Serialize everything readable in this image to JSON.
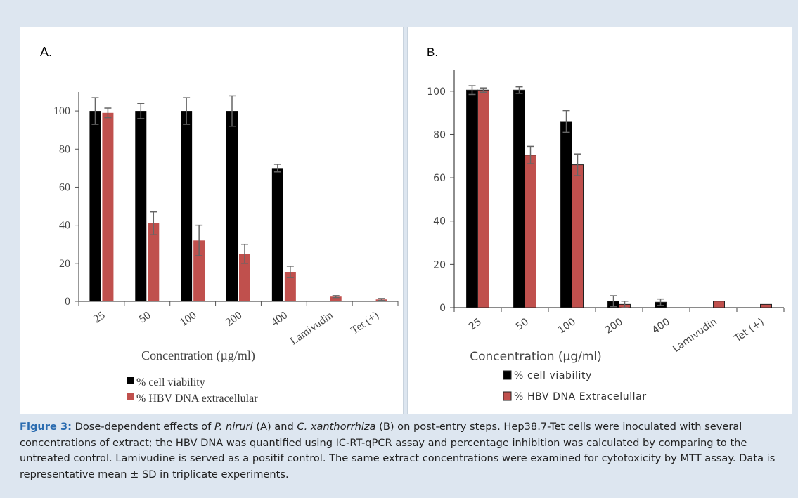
{
  "colors": {
    "viability": "#000000",
    "hbv": "#c0504d",
    "caption_label": "#2b6cb0"
  },
  "caption": {
    "label": "Figure 3:",
    "seg1": " Dose-dependent effects of ",
    "species1": "P. niruri",
    "seg2": " (A) and ",
    "species2": "C. xanthorrhiza",
    "seg3": " (B) on post-entry steps. Hep38.7-Tet cells were inoculated with several concentrations of extract; the HBV DNA was quantified using IC-RT-qPCR assay and percentage inhibition was calculated by comparing to the untreated control. Lamivudine is served as a positif control. The same extract concentrations were examined for cytotoxicity by MTT assay. Data is representative mean ± SD in triplicate experiments."
  },
  "chart_data": [
    {
      "panel_label": "A.",
      "type": "bar",
      "categories": [
        "25",
        "50",
        "100",
        "200",
        "400",
        "Lamivudin",
        "Tet (+)"
      ],
      "xlabel": "Concentration (µg/ml)",
      "ylabel": "",
      "ylim": [
        0,
        110
      ],
      "yticks": [
        0,
        20,
        40,
        60,
        80,
        100
      ],
      "grid": false,
      "legend_position": "bottom",
      "series": [
        {
          "name": "% cell viability",
          "color": "#000000",
          "values": [
            100,
            100,
            100,
            100,
            70,
            null,
            null
          ],
          "errors": [
            7,
            4,
            7,
            8,
            2,
            null,
            null
          ]
        },
        {
          "name": "% HBV DNA extracellular",
          "color": "#c0504d",
          "values": [
            99,
            41,
            32,
            25,
            15.5,
            2.5,
            1
          ],
          "errors": [
            2.5,
            6,
            8,
            5,
            3,
            0.5,
            0.5
          ]
        }
      ]
    },
    {
      "panel_label": "B.",
      "type": "bar",
      "categories": [
        "25",
        "50",
        "100",
        "200",
        "400",
        "Lamivudin",
        "Tet (+)"
      ],
      "xlabel": "Concentration (µg/ml)",
      "ylabel": "",
      "ylim": [
        0,
        110
      ],
      "yticks": [
        0,
        20,
        40,
        60,
        80,
        100
      ],
      "grid": false,
      "legend_position": "bottom",
      "series": [
        {
          "name": "% cell viability",
          "color": "#000000",
          "values": [
            100.5,
            100.5,
            86,
            3,
            2.5,
            null,
            null
          ],
          "errors": [
            2,
            1.5,
            5,
            2.5,
            1.5,
            null,
            null
          ]
        },
        {
          "name": "% HBV DNA Extracelullar",
          "color": "#c0504d",
          "values": [
            100.5,
            70.5,
            66,
            1.5,
            null,
            3,
            1.5
          ],
          "errors": [
            1,
            4,
            5,
            1.5,
            null,
            null,
            null
          ]
        }
      ]
    }
  ]
}
